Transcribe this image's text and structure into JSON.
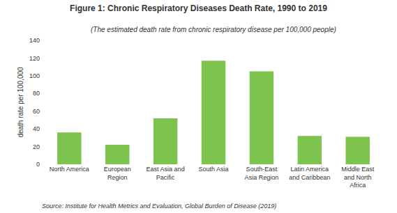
{
  "chart_data": {
    "type": "bar",
    "title": "Figure 1: Chronic Respiratory Diseases Death Rate, 1990 to 2019",
    "subtitle": "(The estimated death rate from chronic respiratory disease per 100,000 people)",
    "ylabel": "death rate per 100,000",
    "source": "Source: Institute for Health Metrics and Evaluation, Global Burden of Disease (2019)",
    "categories": [
      "North America",
      "European\nRegion",
      "East Asia and\nPacific",
      "South Asia",
      "South-East\nAsia Region",
      "Latin America\nand Caribbean",
      "Middle East\nand North\nAfrica"
    ],
    "values": [
      36,
      22,
      52,
      117,
      105,
      32,
      31
    ],
    "color": "#7dc44e",
    "ylim": [
      0,
      140
    ],
    "yticks": [
      0,
      20,
      40,
      60,
      80,
      100,
      120,
      140
    ],
    "grid": false
  }
}
